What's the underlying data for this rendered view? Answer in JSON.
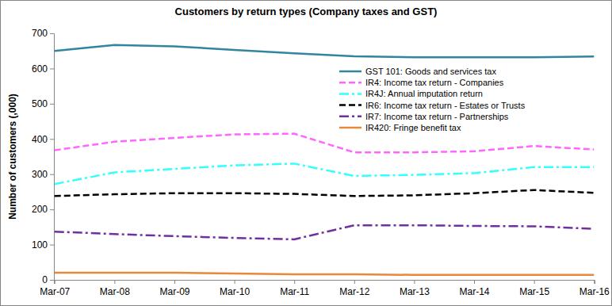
{
  "chart_data": {
    "type": "line",
    "title": "Customers by return types (Company taxes and GST)",
    "y_label": "Number of customers (,000)",
    "categories": [
      "Mar-07",
      "Mar-08",
      "Mar-09",
      "Mar-10",
      "Mar-11",
      "Mar-12",
      "Mar-13",
      "Mar-14",
      "Mar-15",
      "Mar-16"
    ],
    "series": [
      {
        "name": "GST 101: Goods and services tax",
        "color": "#31859c",
        "line_style": "solid",
        "values": [
          650,
          667,
          663,
          653,
          643,
          635,
          632,
          632,
          632,
          634
        ]
      },
      {
        "name": "IR4: Income tax return - Companies",
        "color": "#ff66ff",
        "line_style": "dashed",
        "values": [
          368,
          392,
          403,
          413,
          415,
          362,
          362,
          365,
          380,
          370
        ]
      },
      {
        "name": "IR4J: Annual imputation return",
        "color": "#33ffff",
        "line_style": "dashdot",
        "values": [
          272,
          305,
          315,
          325,
          330,
          295,
          298,
          303,
          320,
          320
        ]
      },
      {
        "name": "IR6: Income tax return - Estates or Trusts",
        "color": "#000000",
        "line_style": "dashed",
        "values": [
          238,
          243,
          246,
          246,
          244,
          238,
          240,
          246,
          255,
          247
        ]
      },
      {
        "name": "IR7: Income tax return - Partnerships",
        "color": "#7030a0",
        "line_style": "dashdot",
        "values": [
          137,
          130,
          124,
          119,
          115,
          155,
          155,
          153,
          152,
          145
        ]
      },
      {
        "name": "IR420: Fringe benefit tax",
        "color": "#e8883a",
        "line_style": "solid",
        "values": [
          20,
          20,
          20,
          18,
          16,
          16,
          14,
          14,
          14,
          14
        ]
      }
    ],
    "ylim": [
      0,
      700
    ],
    "yticks": [
      0,
      100,
      200,
      300,
      400,
      500,
      600,
      700
    ],
    "grid": false,
    "legend": "upper right"
  }
}
